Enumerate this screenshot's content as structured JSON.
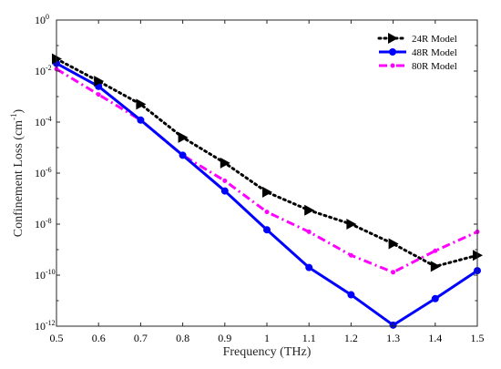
{
  "chart_data": {
    "type": "line",
    "title": "",
    "xlabel": "Frequency (THz)",
    "ylabel_main": "Confinement Loss (cm",
    "ylabel_sup": "-1",
    "ylabel_close": ")",
    "xlim": [
      0.5,
      1.5
    ],
    "ylim": [
      1e-12,
      1
    ],
    "yscale": "log",
    "grid": false,
    "legend_position": "top-right",
    "x": [
      0.5,
      0.6,
      0.7,
      0.8,
      0.9,
      1.0,
      1.1,
      1.2,
      1.3,
      1.4,
      1.5
    ],
    "x_tick_labels": [
      "0.5",
      "0.6",
      "0.7",
      "0.8",
      "0.9",
      "1",
      "1.1",
      "1.2",
      "1.3",
      "1.4",
      "1.5"
    ],
    "y_ticks": [
      {
        "value": 1e-12,
        "base": "10",
        "exp": "-12"
      },
      {
        "value": 1e-10,
        "base": "10",
        "exp": "-10"
      },
      {
        "value": 1e-08,
        "base": "10",
        "exp": "-8"
      },
      {
        "value": 1e-06,
        "base": "10",
        "exp": "-6"
      },
      {
        "value": 0.0001,
        "base": "10",
        "exp": "-4"
      },
      {
        "value": 0.01,
        "base": "10",
        "exp": "-2"
      },
      {
        "value": 1,
        "base": "10",
        "exp": "0"
      }
    ],
    "series": [
      {
        "name": "24R Model",
        "color": "#000000",
        "line_style": "dotted",
        "marker": "triangle-right",
        "values": [
          0.03,
          0.004,
          0.0005,
          2.5e-05,
          2.5e-06,
          1.8e-07,
          3.5e-08,
          1e-08,
          1.7e-09,
          2.2e-10,
          6e-10
        ]
      },
      {
        "name": "48R Model",
        "color": "#0000ff",
        "line_style": "solid",
        "marker": "circle",
        "values": [
          0.02,
          0.0025,
          0.00012,
          5e-06,
          2e-07,
          6e-09,
          2e-10,
          1.7e-11,
          1.1e-12,
          1.2e-11,
          1.5e-10
        ]
      },
      {
        "name": "80R Model",
        "color": "#ff00ff",
        "line_style": "dash-dot",
        "marker": "point",
        "values": [
          0.012,
          0.0012,
          0.00012,
          5e-06,
          5e-07,
          3e-08,
          5e-09,
          6e-10,
          1.3e-10,
          9e-10,
          5e-09
        ]
      }
    ]
  }
}
